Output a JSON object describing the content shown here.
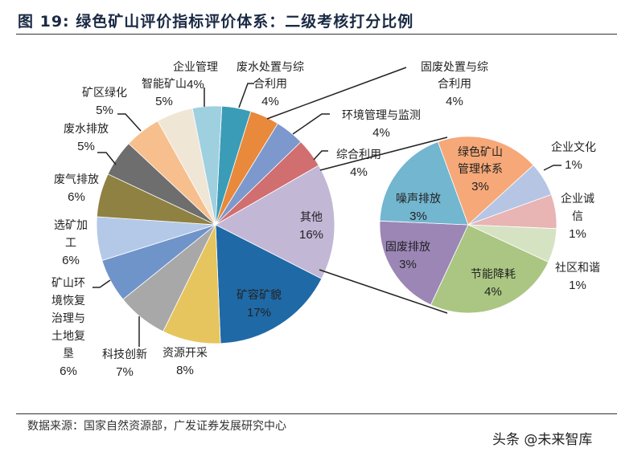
{
  "title": "图 19: 绿色矿山评价指标评价体系：二级考核打分比例",
  "source": "数据来源：国家自然资源部，广发证券发展研究中心",
  "watermark": "头条 @未来智库",
  "chart_data": {
    "type": "pie",
    "title": "图 19: 绿色矿山评价指标评价体系：二级考核打分比例",
    "main": {
      "slices": [
        {
          "label": "废水处置与综合利用",
          "value": 4,
          "pct": "4%",
          "color": "#3b9cb8"
        },
        {
          "label": "固废处置与综合利用",
          "value": 4,
          "pct": "4%",
          "color": "#e8893c"
        },
        {
          "label": "环境管理与监测",
          "value": 4,
          "pct": "4%",
          "color": "#7d98cc"
        },
        {
          "label": "综合利用",
          "value": 4,
          "pct": "4%",
          "color": "#d06e70"
        },
        {
          "label": "其他",
          "value": 16,
          "pct": "16%",
          "color": "#c3b7d6"
        },
        {
          "label": "矿容矿貌",
          "value": 17,
          "pct": "17%",
          "color": "#1f69a6"
        },
        {
          "label": "资源开采",
          "value": 8,
          "pct": "8%",
          "color": "#e6c55e"
        },
        {
          "label": "科技创新",
          "value": 7,
          "pct": "7%",
          "color": "#a8a8a8"
        },
        {
          "label": "矿山环境恢复治理与土地复垦",
          "value": 6,
          "pct": "6%",
          "color": "#6f94c9"
        },
        {
          "label": "选矿加工",
          "value": 6,
          "pct": "6%",
          "color": "#b4c9e8"
        },
        {
          "label": "废气排放",
          "value": 6,
          "pct": "6%",
          "color": "#8f8142"
        },
        {
          "label": "废水排放",
          "value": 5,
          "pct": "5%",
          "color": "#6e6e6e"
        },
        {
          "label": "矿区绿化",
          "value": 5,
          "pct": "5%",
          "color": "#f7bf8d"
        },
        {
          "label": "智能矿山",
          "value": 5,
          "pct": "5%",
          "color": "#efe6d6"
        },
        {
          "label": "企业管理",
          "value": 4,
          "pct": "4%",
          "color": "#9fd0e0"
        }
      ]
    },
    "secondary": {
      "breakdown_of": "其他",
      "slices": [
        {
          "label": "绿色矿山管理体系",
          "value": 3,
          "pct": "3%",
          "color": "#f6a878"
        },
        {
          "label": "企业文化",
          "value": 1,
          "pct": "1%",
          "color": "#b6c5e3"
        },
        {
          "label": "企业诚信",
          "value": 1,
          "pct": "1%",
          "color": "#e8b4b4"
        },
        {
          "label": "社区和谐",
          "value": 1,
          "pct": "1%",
          "color": "#d5e3c3"
        },
        {
          "label": "节能降耗",
          "value": 4,
          "pct": "4%",
          "color": "#aac682"
        },
        {
          "label": "固废排放",
          "value": 3,
          "pct": "3%",
          "color": "#9c86b6"
        },
        {
          "label": "噪声排放",
          "value": 3,
          "pct": "3%",
          "color": "#72b6cf"
        }
      ]
    }
  }
}
